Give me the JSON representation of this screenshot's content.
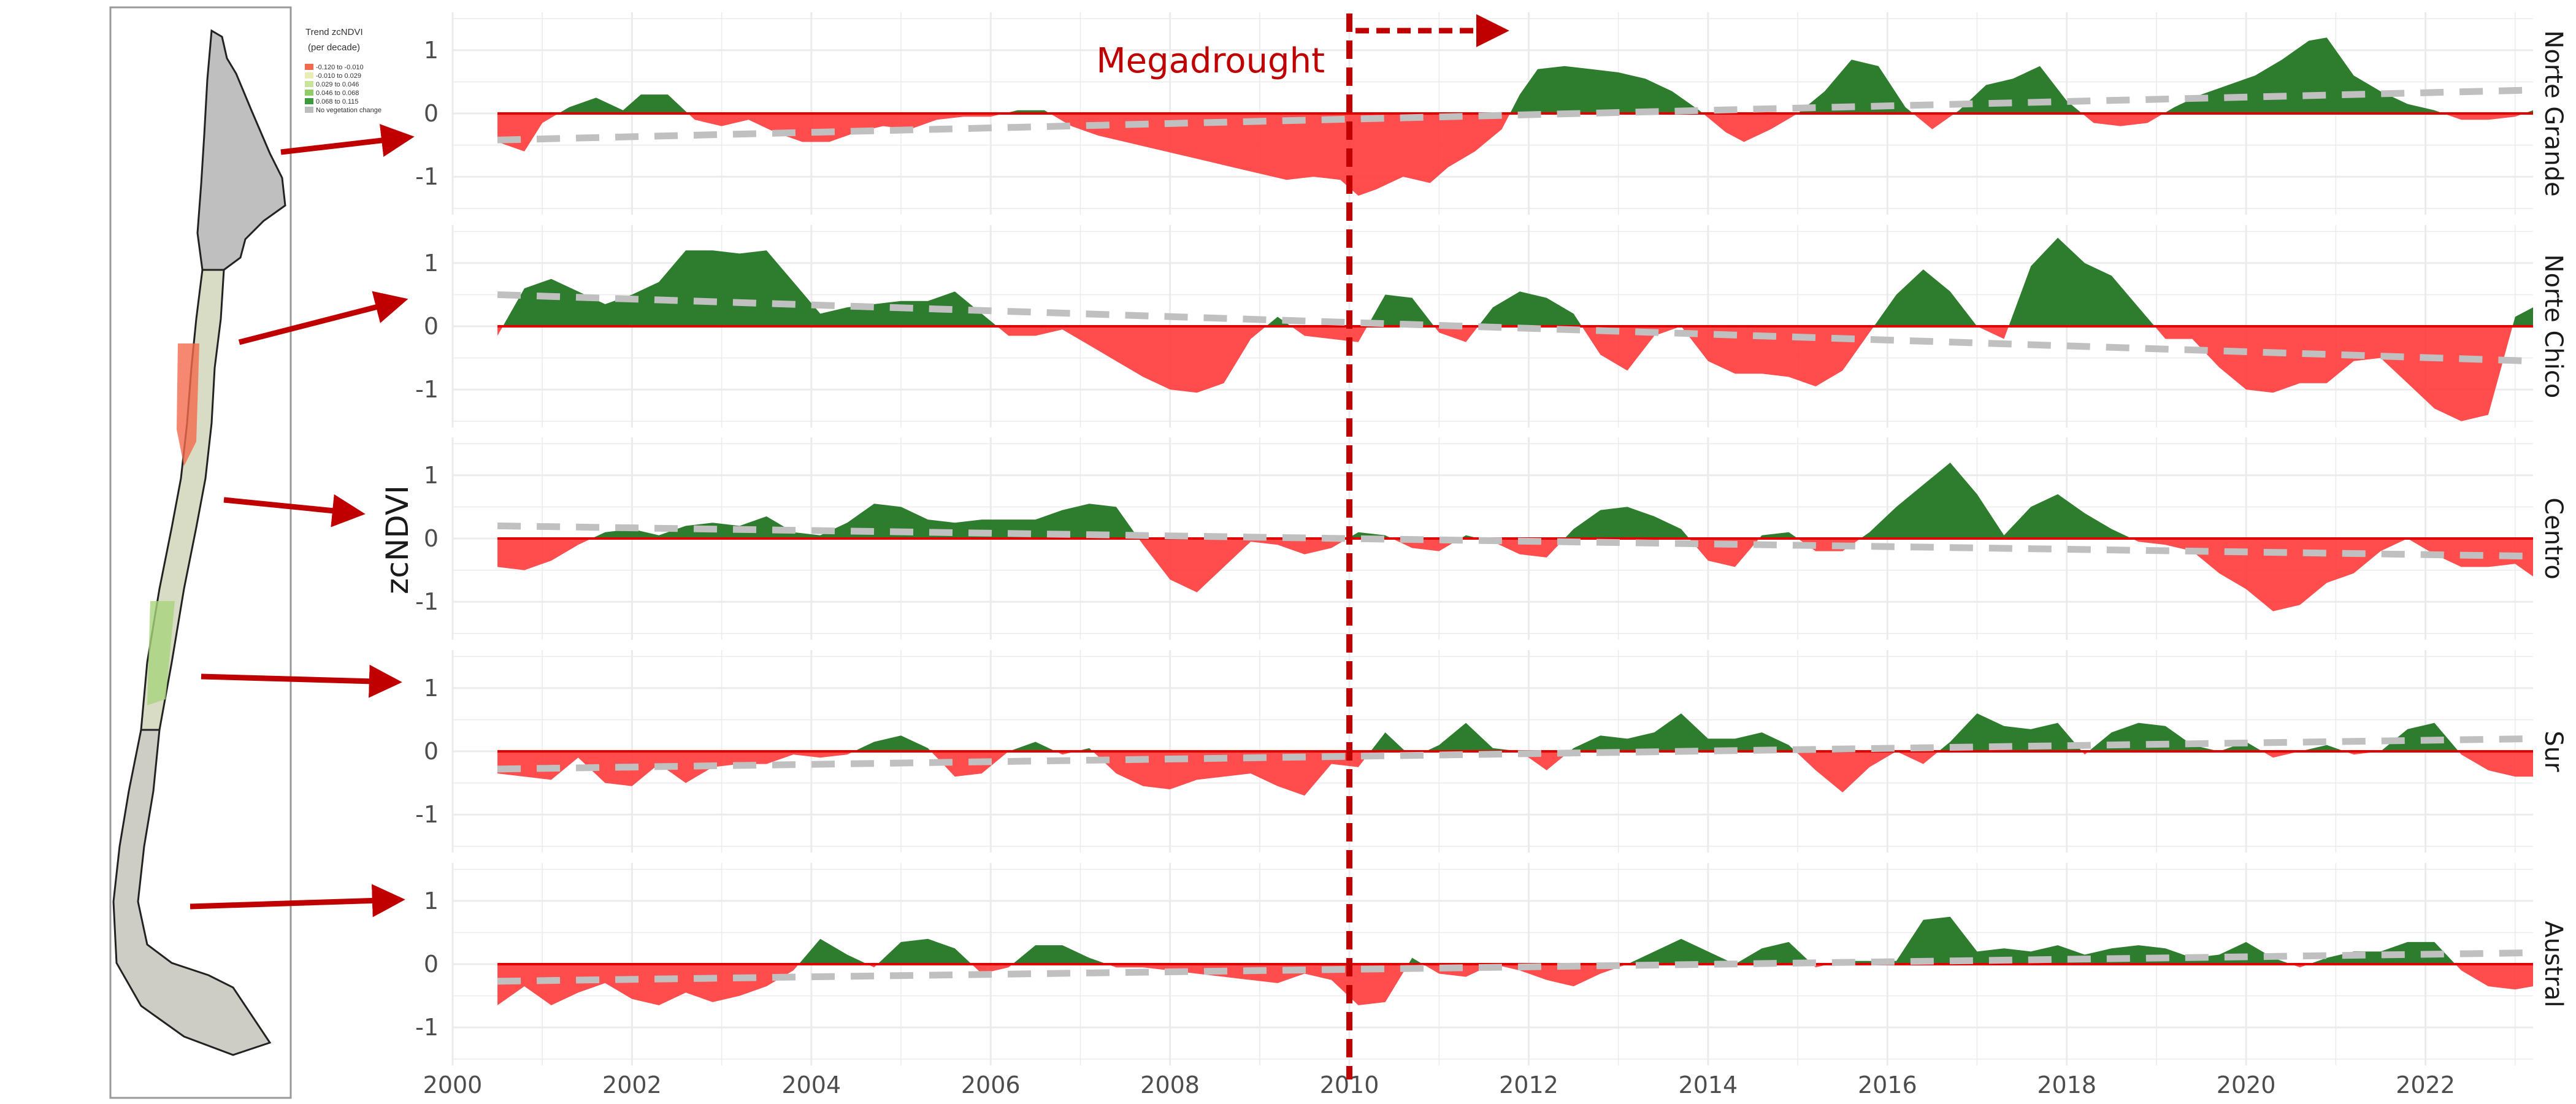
{
  "map_legend": {
    "title": "Trend zcNDVI",
    "subtitle": "(per decade)",
    "items": [
      {
        "label": "-0.120 to -0.010",
        "color": "#f4694c"
      },
      {
        "label": "-0.010 to 0.029",
        "color": "#e9ecb4"
      },
      {
        "label": "0.029 to 0.046",
        "color": "#c9e39a"
      },
      {
        "label": "0.046 to 0.068",
        "color": "#8fcc6a"
      },
      {
        "label": "0.068 to 0.115",
        "color": "#3c9a3c"
      },
      {
        "label": "No vegetation change",
        "color": "#bdbdbd"
      }
    ]
  },
  "chart_data": {
    "type": "area",
    "ylabel": "zcNDVI",
    "xlabel": "",
    "xlim": [
      2000,
      2023.2
    ],
    "ylim": [
      -1.6,
      1.6
    ],
    "x_ticks": [
      "2000",
      "2002",
      "2004",
      "2006",
      "2008",
      "2010",
      "2012",
      "2014",
      "2016",
      "2018",
      "2020",
      "2022"
    ],
    "y_ticks": [
      "1",
      "0",
      "-1"
    ],
    "grid": true,
    "positive_color": "#2e7d2e",
    "negative_color": "#ff3333",
    "trend_color": "#c0c0c0",
    "annotation": {
      "text": "Megadrought",
      "x": 2010,
      "color": "#c00000"
    },
    "series": [
      {
        "name": "Norte Grande",
        "x": [
          2000.5,
          2000.8,
          2001.0,
          2001.3,
          2001.6,
          2001.9,
          2002.1,
          2002.4,
          2002.7,
          2003.0,
          2003.3,
          2003.6,
          2003.9,
          2004.2,
          2004.5,
          2004.8,
          2005.1,
          2005.4,
          2005.7,
          2006.0,
          2006.3,
          2006.6,
          2006.9,
          2007.2,
          2007.5,
          2007.8,
          2008.1,
          2008.4,
          2008.7,
          2009.0,
          2009.3,
          2009.6,
          2009.9,
          2010.1,
          2010.3,
          2010.6,
          2010.9,
          2011.1,
          2011.4,
          2011.7,
          2011.9,
          2012.1,
          2012.4,
          2012.7,
          2013.0,
          2013.3,
          2013.6,
          2013.9,
          2014.2,
          2014.4,
          2014.7,
          2015.0,
          2015.3,
          2015.6,
          2015.9,
          2016.2,
          2016.5,
          2016.8,
          2017.1,
          2017.4,
          2017.7,
          2018.0,
          2018.3,
          2018.6,
          2018.9,
          2019.2,
          2019.5,
          2019.8,
          2020.1,
          2020.4,
          2020.7,
          2020.9,
          2021.2,
          2021.5,
          2021.8,
          2022.1,
          2022.4,
          2022.7,
          2023.0,
          2023.2
        ],
        "values": [
          -0.45,
          -0.6,
          -0.15,
          0.1,
          0.25,
          0.05,
          0.3,
          0.3,
          -0.1,
          -0.2,
          -0.1,
          -0.3,
          -0.45,
          -0.45,
          -0.3,
          -0.2,
          -0.25,
          -0.1,
          -0.05,
          -0.05,
          0.05,
          0.05,
          -0.2,
          -0.35,
          -0.45,
          -0.55,
          -0.65,
          -0.75,
          -0.85,
          -0.95,
          -1.05,
          -1.0,
          -1.05,
          -1.3,
          -1.2,
          -1.0,
          -1.1,
          -0.85,
          -0.6,
          -0.25,
          0.3,
          0.7,
          0.75,
          0.7,
          0.65,
          0.55,
          0.35,
          0.05,
          -0.3,
          -0.45,
          -0.25,
          0.0,
          0.35,
          0.85,
          0.75,
          0.1,
          -0.25,
          0.05,
          0.45,
          0.55,
          0.75,
          0.2,
          -0.15,
          -0.2,
          -0.15,
          0.1,
          0.3,
          0.45,
          0.6,
          0.85,
          1.15,
          1.2,
          0.6,
          0.35,
          0.15,
          0.05,
          -0.1,
          -0.1,
          -0.05,
          0.05
        ],
        "trend": [
          -0.42,
          0.37
        ]
      },
      {
        "name": "Norte Chico",
        "x": [
          2000.5,
          2000.8,
          2001.1,
          2001.4,
          2001.7,
          2002.0,
          2002.3,
          2002.6,
          2002.9,
          2003.2,
          2003.5,
          2003.8,
          2004.1,
          2004.4,
          2004.7,
          2005.0,
          2005.3,
          2005.6,
          2005.9,
          2006.2,
          2006.5,
          2006.8,
          2007.1,
          2007.4,
          2007.7,
          2008.0,
          2008.3,
          2008.6,
          2008.9,
          2009.2,
          2009.5,
          2009.8,
          2010.1,
          2010.4,
          2010.7,
          2011.0,
          2011.3,
          2011.6,
          2011.9,
          2012.2,
          2012.5,
          2012.8,
          2013.1,
          2013.4,
          2013.7,
          2014.0,
          2014.3,
          2014.6,
          2014.9,
          2015.2,
          2015.5,
          2015.8,
          2016.1,
          2016.4,
          2016.7,
          2017.0,
          2017.3,
          2017.6,
          2017.9,
          2018.2,
          2018.5,
          2018.8,
          2019.1,
          2019.4,
          2019.7,
          2020.0,
          2020.3,
          2020.6,
          2020.9,
          2021.2,
          2021.5,
          2021.8,
          2022.1,
          2022.4,
          2022.7,
          2023.0,
          2023.2
        ],
        "values": [
          -0.15,
          0.6,
          0.75,
          0.55,
          0.35,
          0.5,
          0.7,
          1.2,
          1.2,
          1.15,
          1.2,
          0.7,
          0.2,
          0.3,
          0.35,
          0.4,
          0.4,
          0.55,
          0.2,
          -0.15,
          -0.15,
          -0.05,
          -0.3,
          -0.55,
          -0.8,
          -1.0,
          -1.05,
          -0.9,
          -0.2,
          0.15,
          -0.15,
          -0.2,
          -0.25,
          0.5,
          0.45,
          -0.1,
          -0.25,
          0.3,
          0.55,
          0.45,
          0.2,
          -0.45,
          -0.7,
          -0.15,
          0.0,
          -0.55,
          -0.75,
          -0.75,
          -0.8,
          -0.95,
          -0.7,
          -0.1,
          0.5,
          0.9,
          0.55,
          0.0,
          -0.2,
          0.95,
          1.4,
          1.0,
          0.8,
          0.3,
          -0.2,
          -0.2,
          -0.65,
          -1.0,
          -1.05,
          -0.9,
          -0.9,
          -0.55,
          -0.5,
          -0.9,
          -1.3,
          -1.5,
          -1.4,
          0.15,
          0.3
        ],
        "trend": [
          0.5,
          -0.55
        ]
      },
      {
        "name": "Centro",
        "x": [
          2000.5,
          2000.8,
          2001.1,
          2001.4,
          2001.7,
          2002.0,
          2002.3,
          2002.6,
          2002.9,
          2003.2,
          2003.5,
          2003.8,
          2004.1,
          2004.4,
          2004.7,
          2005.0,
          2005.3,
          2005.6,
          2005.9,
          2006.2,
          2006.5,
          2006.8,
          2007.1,
          2007.4,
          2007.7,
          2008.0,
          2008.3,
          2008.6,
          2008.9,
          2009.2,
          2009.5,
          2009.8,
          2010.1,
          2010.4,
          2010.7,
          2011.0,
          2011.3,
          2011.6,
          2011.9,
          2012.2,
          2012.5,
          2012.8,
          2013.1,
          2013.4,
          2013.7,
          2014.0,
          2014.3,
          2014.6,
          2014.9,
          2015.2,
          2015.5,
          2015.8,
          2016.1,
          2016.4,
          2016.7,
          2017.0,
          2017.3,
          2017.6,
          2017.9,
          2018.2,
          2018.5,
          2018.8,
          2019.1,
          2019.4,
          2019.7,
          2020.0,
          2020.3,
          2020.6,
          2020.9,
          2021.2,
          2021.5,
          2021.8,
          2022.1,
          2022.4,
          2022.7,
          2023.0,
          2023.2
        ],
        "values": [
          -0.45,
          -0.5,
          -0.35,
          -0.1,
          0.1,
          0.15,
          0.05,
          0.2,
          0.25,
          0.2,
          0.35,
          0.1,
          0.05,
          0.25,
          0.55,
          0.5,
          0.3,
          0.25,
          0.3,
          0.3,
          0.3,
          0.45,
          0.55,
          0.5,
          -0.1,
          -0.65,
          -0.85,
          -0.45,
          -0.05,
          -0.1,
          -0.25,
          -0.15,
          0.1,
          0.05,
          -0.15,
          -0.2,
          0.05,
          -0.05,
          -0.25,
          -0.3,
          0.15,
          0.45,
          0.5,
          0.35,
          0.15,
          -0.35,
          -0.45,
          0.05,
          0.1,
          -0.2,
          -0.2,
          0.1,
          0.5,
          0.85,
          1.2,
          0.7,
          0.05,
          0.5,
          0.7,
          0.4,
          0.15,
          -0.05,
          -0.1,
          -0.2,
          -0.55,
          -0.8,
          -1.15,
          -1.05,
          -0.7,
          -0.55,
          -0.2,
          0.0,
          -0.25,
          -0.45,
          -0.45,
          -0.4,
          -0.6
        ],
        "trend": [
          0.2,
          -0.28
        ]
      },
      {
        "name": "Sur",
        "x": [
          2000.5,
          2000.8,
          2001.1,
          2001.4,
          2001.7,
          2002.0,
          2002.3,
          2002.6,
          2002.9,
          2003.2,
          2003.5,
          2003.8,
          2004.1,
          2004.4,
          2004.7,
          2005.0,
          2005.3,
          2005.6,
          2005.9,
          2006.2,
          2006.5,
          2006.8,
          2007.1,
          2007.4,
          2007.7,
          2008.0,
          2008.3,
          2008.6,
          2008.9,
          2009.2,
          2009.5,
          2009.8,
          2010.1,
          2010.4,
          2010.7,
          2011.0,
          2011.3,
          2011.6,
          2011.9,
          2012.2,
          2012.5,
          2012.8,
          2013.1,
          2013.4,
          2013.7,
          2014.0,
          2014.3,
          2014.6,
          2014.9,
          2015.2,
          2015.5,
          2015.8,
          2016.1,
          2016.4,
          2016.7,
          2017.0,
          2017.3,
          2017.6,
          2017.9,
          2018.2,
          2018.5,
          2018.8,
          2019.1,
          2019.4,
          2019.7,
          2020.0,
          2020.3,
          2020.6,
          2020.9,
          2021.2,
          2021.5,
          2021.8,
          2022.1,
          2022.4,
          2022.7,
          2023.0,
          2023.2
        ],
        "values": [
          -0.35,
          -0.4,
          -0.45,
          -0.1,
          -0.5,
          -0.55,
          -0.2,
          -0.5,
          -0.25,
          -0.2,
          -0.2,
          -0.05,
          -0.1,
          -0.05,
          0.15,
          0.25,
          0.05,
          -0.4,
          -0.35,
          0.0,
          0.15,
          -0.05,
          0.05,
          -0.35,
          -0.55,
          -0.6,
          -0.45,
          -0.4,
          -0.35,
          -0.55,
          -0.7,
          -0.2,
          -0.25,
          0.3,
          -0.1,
          0.1,
          0.45,
          0.05,
          0.0,
          -0.3,
          0.05,
          0.25,
          0.2,
          0.3,
          0.6,
          0.2,
          0.2,
          0.3,
          0.1,
          -0.3,
          -0.65,
          -0.25,
          0.0,
          -0.2,
          0.15,
          0.6,
          0.4,
          0.35,
          0.45,
          -0.05,
          0.3,
          0.45,
          0.4,
          0.1,
          0.0,
          0.15,
          -0.1,
          0.0,
          0.1,
          -0.05,
          0.0,
          0.35,
          0.45,
          -0.05,
          -0.3,
          -0.4,
          -0.4
        ],
        "trend": [
          -0.28,
          0.2
        ]
      },
      {
        "name": "Austral",
        "x": [
          2000.5,
          2000.8,
          2001.1,
          2001.4,
          2001.7,
          2002.0,
          2002.3,
          2002.6,
          2002.9,
          2003.2,
          2003.5,
          2003.8,
          2004.1,
          2004.4,
          2004.7,
          2005.0,
          2005.3,
          2005.6,
          2005.9,
          2006.2,
          2006.5,
          2006.8,
          2007.1,
          2007.4,
          2007.7,
          2008.0,
          2008.3,
          2008.6,
          2008.9,
          2009.2,
          2009.5,
          2009.8,
          2010.1,
          2010.4,
          2010.7,
          2011.0,
          2011.3,
          2011.6,
          2011.9,
          2012.2,
          2012.5,
          2012.8,
          2013.1,
          2013.4,
          2013.7,
          2014.0,
          2014.3,
          2014.6,
          2014.9,
          2015.2,
          2015.5,
          2015.8,
          2016.1,
          2016.4,
          2016.7,
          2017.0,
          2017.3,
          2017.6,
          2017.9,
          2018.2,
          2018.5,
          2018.8,
          2019.1,
          2019.4,
          2019.7,
          2020.0,
          2020.3,
          2020.6,
          2020.9,
          2021.2,
          2021.5,
          2021.8,
          2022.1,
          2022.4,
          2022.7,
          2023.0,
          2023.2
        ],
        "values": [
          -0.65,
          -0.35,
          -0.65,
          -0.45,
          -0.3,
          -0.55,
          -0.65,
          -0.45,
          -0.6,
          -0.5,
          -0.35,
          -0.1,
          0.4,
          0.15,
          -0.05,
          0.35,
          0.4,
          0.25,
          -0.15,
          -0.05,
          0.3,
          0.3,
          0.1,
          -0.05,
          -0.05,
          -0.1,
          -0.15,
          -0.2,
          -0.25,
          -0.3,
          -0.15,
          -0.25,
          -0.65,
          -0.6,
          0.1,
          -0.15,
          -0.2,
          0.0,
          -0.1,
          -0.25,
          -0.35,
          -0.15,
          0.0,
          0.2,
          0.4,
          0.2,
          0.0,
          0.25,
          0.35,
          -0.05,
          0.05,
          0.05,
          0.05,
          0.7,
          0.75,
          0.2,
          0.25,
          0.2,
          0.3,
          0.15,
          0.25,
          0.3,
          0.25,
          0.1,
          0.15,
          0.35,
          0.1,
          -0.05,
          0.1,
          0.2,
          0.2,
          0.35,
          0.35,
          -0.1,
          -0.35,
          -0.4,
          -0.35
        ],
        "trend": [
          -0.27,
          0.18
        ]
      }
    ]
  }
}
